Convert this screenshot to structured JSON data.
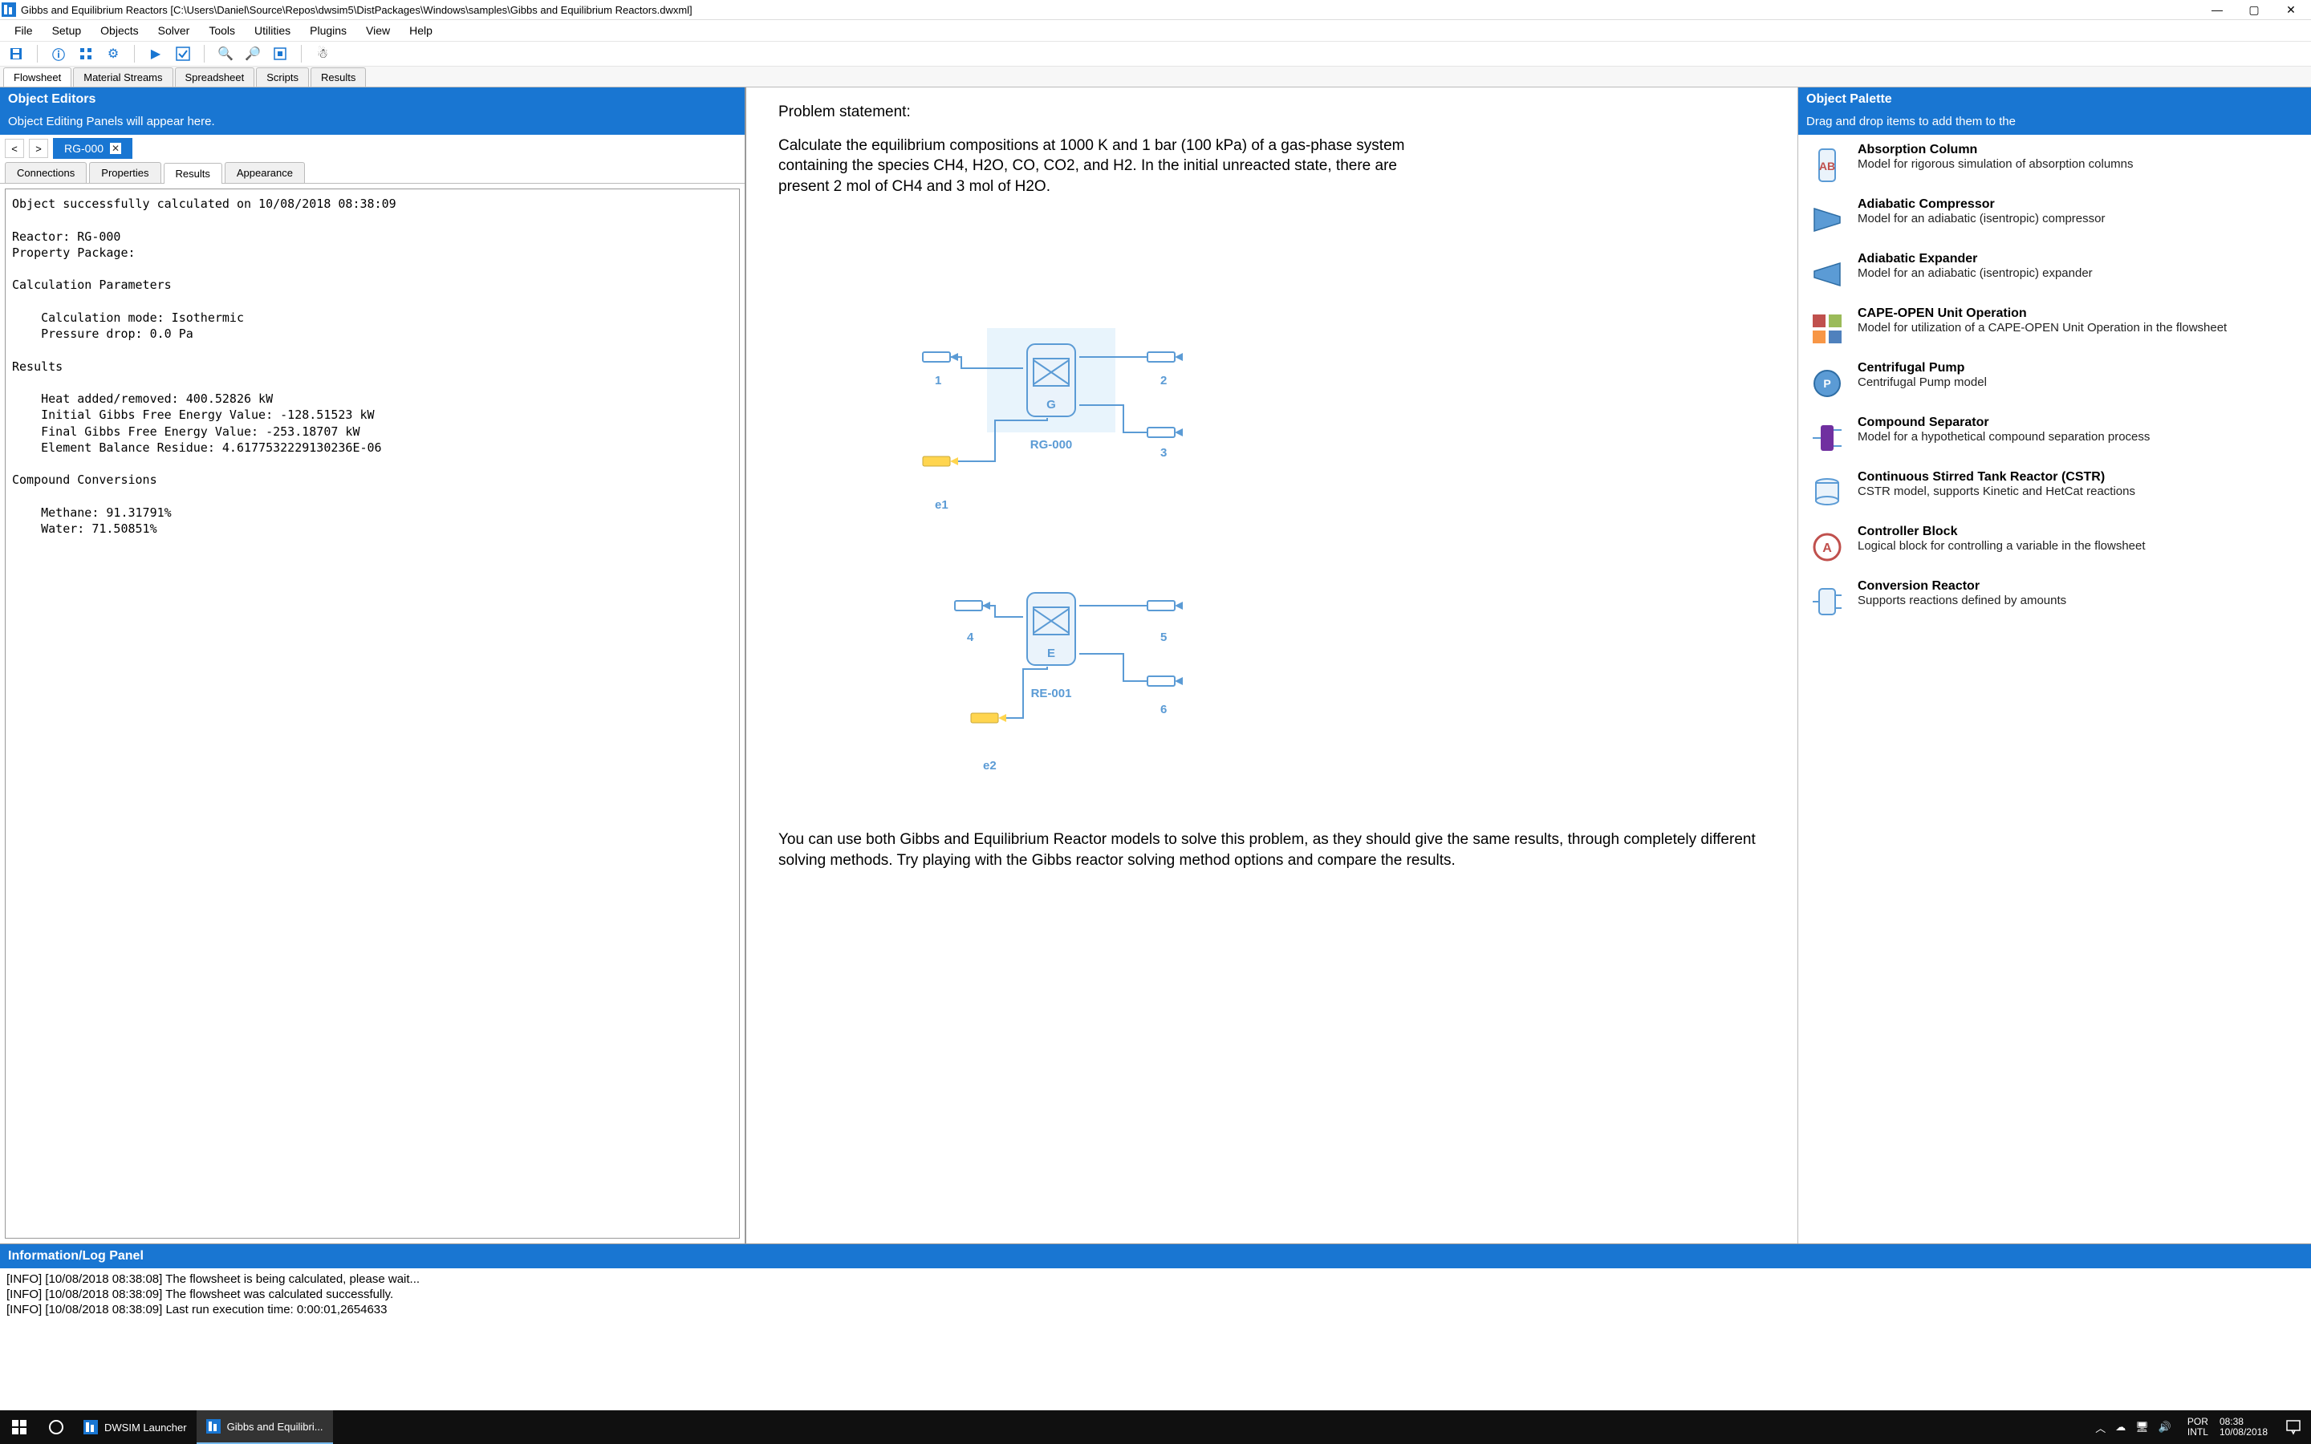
{
  "window": {
    "title": "Gibbs and Equilibrium Reactors [C:\\Users\\Daniel\\Source\\Repos\\dwsim5\\DistPackages\\Windows\\samples\\Gibbs and Equilibrium Reactors.dwxml]",
    "min": "—",
    "max": "▢",
    "close": "✕"
  },
  "menu": {
    "items": [
      "File",
      "Setup",
      "Objects",
      "Solver",
      "Tools",
      "Utilities",
      "Plugins",
      "View",
      "Help"
    ]
  },
  "doctabs": {
    "items": [
      "Flowsheet",
      "Material Streams",
      "Spreadsheet",
      "Scripts",
      "Results"
    ],
    "active": 0
  },
  "left": {
    "header": "Object Editors",
    "sub": "Object Editing Panels will appear here.",
    "nav_prev": "<",
    "nav_next": ">",
    "obj_tab": "RG-000",
    "prop_tabs": [
      "Connections",
      "Properties",
      "Results",
      "Appearance"
    ],
    "prop_active": 2,
    "results_text": "Object successfully calculated on 10/08/2018 08:38:09\n\nReactor: RG-000\nProperty Package:\n\nCalculation Parameters\n\n    Calculation mode: Isothermic\n    Pressure drop: 0.0 Pa\n\nResults\n\n    Heat added/removed: 400.52826 kW\n    Initial Gibbs Free Energy Value: -128.51523 kW\n    Final Gibbs Free Energy Value: -253.18707 kW\n    Element Balance Residue: 4.6177532229130236E-06\n\nCompound Conversions\n\n    Methane: 91.31791%\n    Water: 71.50851%"
  },
  "center": {
    "ps_title": "Problem statement:",
    "ps_body": "Calculate the equilibrium compositions at 1000 K and 1 bar (100 kPa) of a gas-phase system containing the species CH4, H2O, CO, CO2, and H2. In the initial unreacted state, there are present 2 mol of CH4 and 3 mol of H2O.",
    "desc": "You can use both Gibbs and Equilibrium Reactor models to solve this problem, as they should give the same results, through completely different solving methods. Try playing with the Gibbs reactor solving method options and compare the results.",
    "labels": {
      "s1": "1",
      "s2": "2",
      "s3": "3",
      "s4": "4",
      "s5": "5",
      "s6": "6",
      "e1": "e1",
      "e2": "e2",
      "rg": "RG-000",
      "re": "RE-001",
      "g": "G",
      "e": "E"
    },
    "colors": {
      "stream": "#5b9bd5",
      "reactor_fill": "#eaf3fb",
      "reactor_stroke": "#5b9bd5",
      "energy": "#ffd54f",
      "selected_box": "#b3d9f2",
      "label": "#5b9bd5"
    }
  },
  "right": {
    "header": "Object Palette",
    "sub": "Drag and drop items to add them to the",
    "items": [
      {
        "name": "Absorption Column",
        "desc": "Model for rigorous simulation of absorption columns",
        "icon": "abs"
      },
      {
        "name": "Adiabatic Compressor",
        "desc": "Model for an adiabatic (isentropic) compressor",
        "icon": "comp"
      },
      {
        "name": "Adiabatic Expander",
        "desc": "Model for an adiabatic (isentropic) expander",
        "icon": "exp"
      },
      {
        "name": "CAPE-OPEN Unit Operation",
        "desc": "Model for utilization of a CAPE-OPEN Unit Operation in the flowsheet",
        "icon": "cape"
      },
      {
        "name": "Centrifugal Pump",
        "desc": "Centrifugal Pump model",
        "icon": "pump"
      },
      {
        "name": "Compound Separator",
        "desc": "Model for a hypothetical compound separation process",
        "icon": "csep"
      },
      {
        "name": "Continuous Stirred Tank Reactor (CSTR)",
        "desc": "CSTR model, supports Kinetic and HetCat reactions",
        "icon": "cstr"
      },
      {
        "name": "Controller Block",
        "desc": "Logical block for controlling a variable in the flowsheet",
        "icon": "ctrl"
      },
      {
        "name": "Conversion Reactor",
        "desc": "Supports reactions defined by amounts",
        "icon": "conv"
      }
    ]
  },
  "log": {
    "header": "Information/Log Panel",
    "lines": [
      "[INFO] [10/08/2018 08:38:08] The flowsheet is being calculated, please wait...",
      "[INFO] [10/08/2018 08:38:09] The flowsheet was calculated successfully.",
      "[INFO] [10/08/2018 08:38:09] Last run execution time: 0:00:01,2654633"
    ]
  },
  "taskbar": {
    "app1": "DWSIM Launcher",
    "app2": "Gibbs and Equilibri...",
    "lang": "POR",
    "kbd": "INTL",
    "time": "08:38",
    "date": "10/08/2018"
  }
}
